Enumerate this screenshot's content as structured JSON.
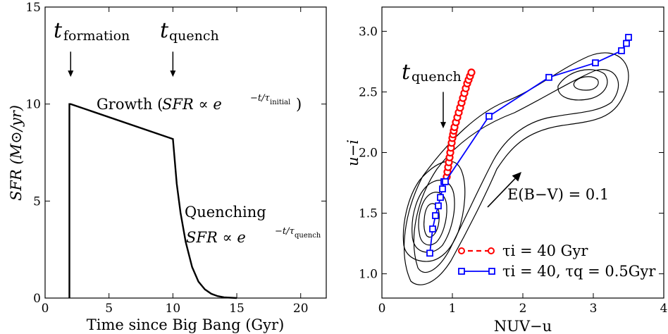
{
  "chart_data": [
    {
      "type": "line",
      "xlabel": "Time since Big Bang (Gyr)",
      "ylabel": "SFR (M⊙/yr)",
      "xlim": [
        0,
        22
      ],
      "ylim": [
        0,
        15
      ],
      "xticks": [
        "0",
        "5",
        "10",
        "15",
        "20"
      ],
      "yticks": [
        "0",
        "5",
        "10",
        "15"
      ],
      "grid": false,
      "series": [
        {
          "x": [
            1.9,
            1.9,
            2.0,
            10.0,
            10.3,
            10.6,
            11.0,
            11.5,
            12.0,
            12.5,
            13.0,
            13.5,
            14.0,
            15.0
          ],
          "y": [
            0.0,
            10.0,
            10.0,
            8.2,
            5.9,
            4.4,
            2.9,
            1.6,
            0.85,
            0.45,
            0.22,
            0.1,
            0.04,
            0.0
          ]
        }
      ],
      "annotations": [
        {
          "text": "t",
          "sub": "formation",
          "arrow_x": 2.0,
          "arrow_y_from": 12.7,
          "arrow_y_to": 11.4
        },
        {
          "text": "t",
          "sub": "quench",
          "arrow_x": 10.0,
          "arrow_y_from": 12.7,
          "arrow_y_to": 11.4
        },
        {
          "text": "Growth (",
          "math": "SFR ∝ e",
          "exp": "−t/τ",
          "exp_sub": "initial",
          "close": ")"
        },
        {
          "text": "Quenching",
          "math": "SFR ∝ e",
          "exp": "−t/τ",
          "exp_sub": "quench"
        }
      ]
    },
    {
      "type": "line",
      "xlabel": "NUV−u",
      "ylabel": "u−i",
      "xlim": [
        0,
        4
      ],
      "ylim": [
        0.8,
        3.2
      ],
      "xticks": [
        "0",
        "1",
        "2",
        "3",
        "4"
      ],
      "yticks": [
        "1.0",
        "1.5",
        "2.0",
        "2.5",
        "3.0"
      ],
      "grid": false,
      "legend_position": "lower-right",
      "series": [
        {
          "name": "τi = 40 Gyr",
          "color": "#ff0000",
          "marker": "circle",
          "linestyle": "dashed",
          "x": [
            0.92,
            0.93,
            0.94,
            0.95,
            0.96,
            0.97,
            0.98,
            0.99,
            1.0,
            1.01,
            1.02,
            1.03,
            1.05,
            1.07,
            1.09,
            1.11,
            1.13,
            1.15,
            1.17,
            1.19,
            1.21,
            1.23,
            1.25,
            1.27
          ],
          "y": [
            1.8,
            1.84,
            1.88,
            1.92,
            1.96,
            2.0,
            2.04,
            2.08,
            2.12,
            2.15,
            2.18,
            2.21,
            2.25,
            2.29,
            2.33,
            2.37,
            2.41,
            2.45,
            2.49,
            2.53,
            2.57,
            2.6,
            2.63,
            2.66
          ]
        },
        {
          "name": "τi = 40, τq = 0.5Gyr",
          "color": "#0000ff",
          "marker": "square",
          "linestyle": "solid",
          "x": [
            0.68,
            0.72,
            0.76,
            0.8,
            0.83,
            0.86,
            0.88,
            0.9,
            1.52,
            2.37,
            3.03,
            3.4,
            3.47,
            3.5
          ],
          "y": [
            1.17,
            1.37,
            1.48,
            1.56,
            1.63,
            1.7,
            1.76,
            1.76,
            2.3,
            2.62,
            2.74,
            2.84,
            2.9,
            2.95
          ]
        }
      ],
      "contour_peaks": [
        {
          "x": 0.72,
          "y": 1.42
        },
        {
          "x": 2.85,
          "y": 2.62
        }
      ],
      "annotations": [
        {
          "text": "t",
          "sub": "quench",
          "arrow_x": 0.87,
          "arrow_y_from": 2.5,
          "arrow_y_to": 2.2
        },
        {
          "text": "E(B−V) = 0.1",
          "vector_from": [
            1.5,
            1.55
          ],
          "vector_to": [
            1.98,
            1.84
          ]
        }
      ]
    }
  ]
}
